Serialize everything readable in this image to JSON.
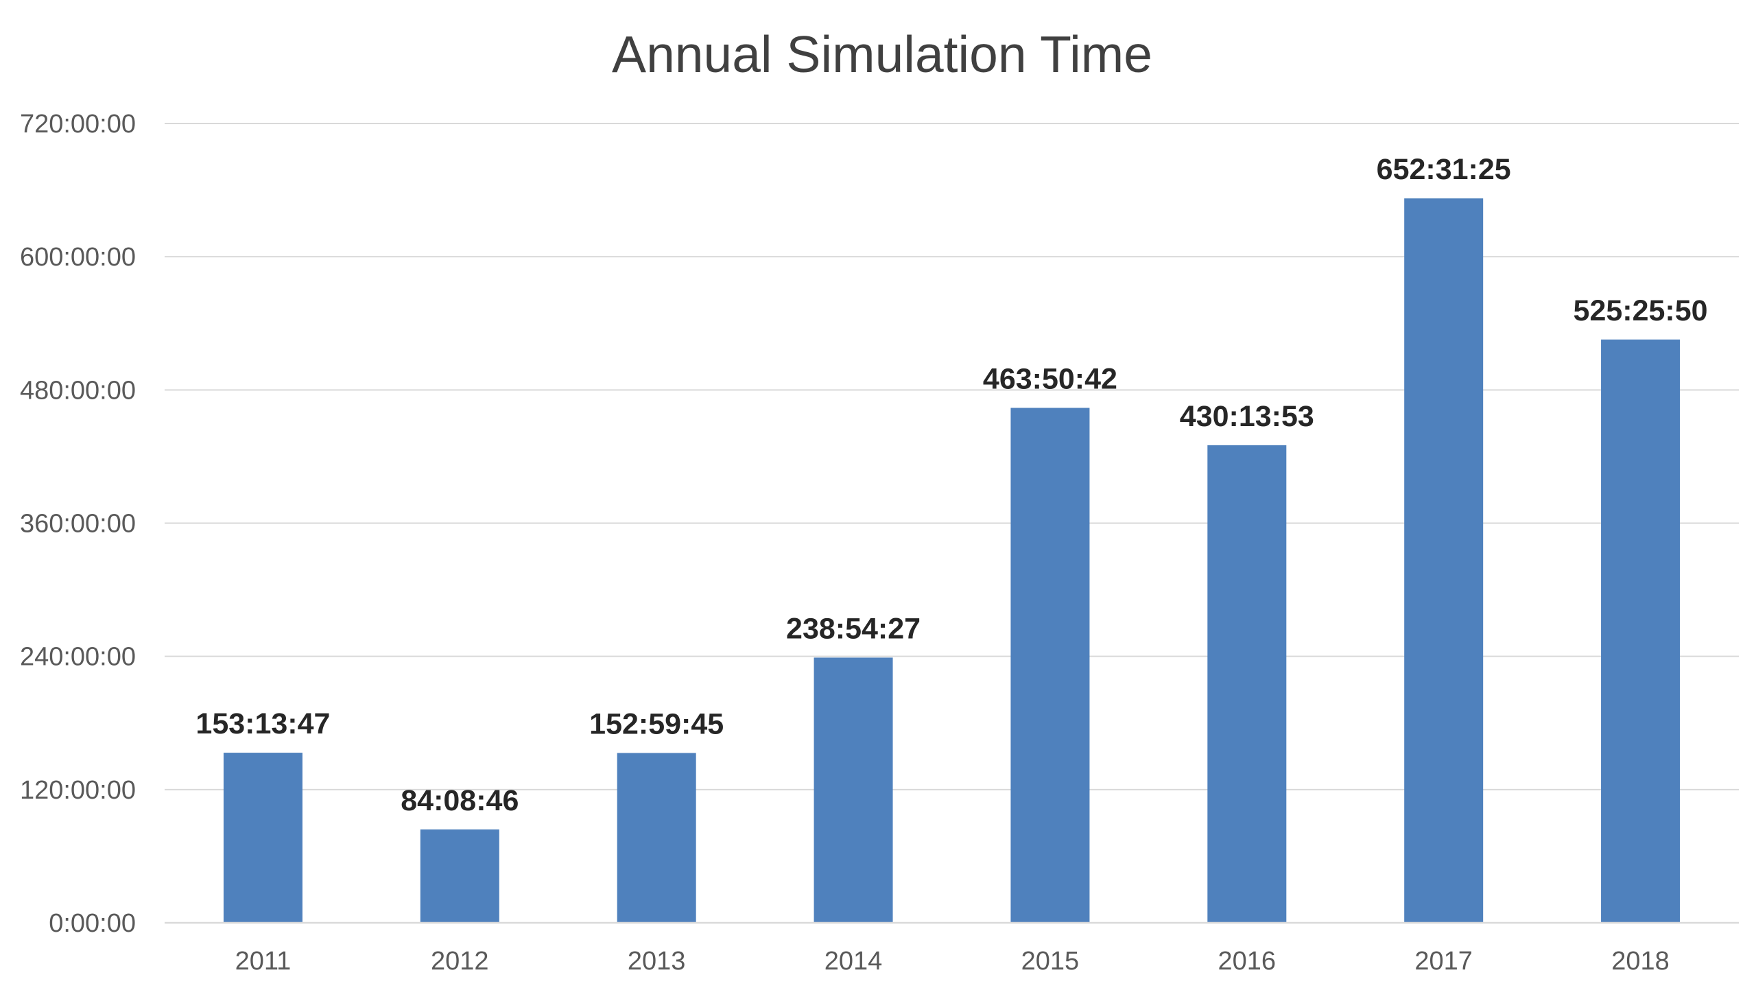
{
  "chart_data": {
    "type": "bar",
    "title": "Annual Simulation Time",
    "categories": [
      "2011",
      "2012",
      "2013",
      "2014",
      "2015",
      "2016",
      "2017",
      "2018"
    ],
    "values_hours": [
      153.2297,
      84.1461,
      152.9958,
      238.9075,
      463.845,
      430.2314,
      652.5236,
      525.4306
    ],
    "data_labels": [
      "153:13:47",
      "84:08:46",
      "152:59:45",
      "238:54:27",
      "463:50:42",
      "430:13:53",
      "652:31:25",
      "525:25:50"
    ],
    "y_ticks_hours": [
      0,
      120,
      240,
      360,
      480,
      600,
      720
    ],
    "y_tick_labels": [
      "0:00:00",
      "120:00:00",
      "240:00:00",
      "360:00:00",
      "480:00:00",
      "600:00:00",
      "720:00:00"
    ],
    "ylim": [
      0,
      720
    ],
    "grid": true,
    "legend": "none",
    "bar_color": "#4f81bd"
  }
}
